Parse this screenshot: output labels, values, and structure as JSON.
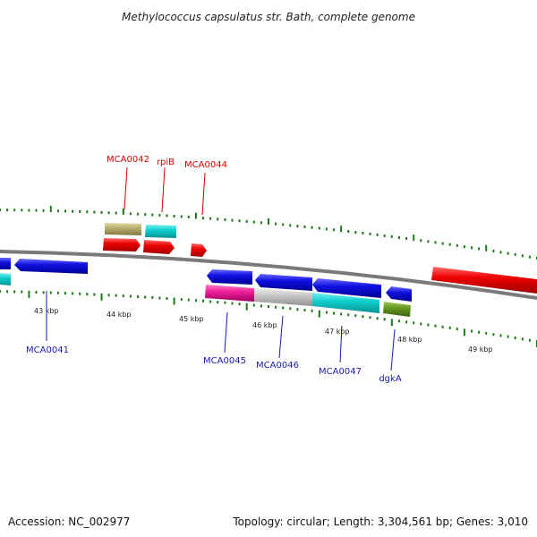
{
  "title": "Methylococcus capsulatus str. Bath, complete genome",
  "footer": {
    "accession": "Accession: NC_002977",
    "summary": "Topology: circular; Length: 3,304,561 bp; Genes: 3,010"
  },
  "colors": {
    "backbone": "#7a7a7a",
    "tick": "#1a7a1a",
    "red": "#ee0000",
    "blue": "#1010e0",
    "cyan": "#10d0d0",
    "khaki": "#b8b070",
    "magenta": "#f0209a",
    "grey": "#c8c8c8",
    "olive": "#6a9a20",
    "label_red": "#d40000",
    "label_blue": "#1a1aa8"
  },
  "kbp_labels": [
    "43 kbp",
    "44 kbp",
    "45 kbp",
    "46 kbp",
    "47 kbp",
    "48 kbp",
    "49 kbp"
  ],
  "gene_labels": {
    "top": [
      "MCA0042",
      "rpiB",
      "MCA0044"
    ],
    "bottom": [
      "MCA0041",
      "MCA0045",
      "MCA0046",
      "MCA0047",
      "dgkA"
    ]
  }
}
